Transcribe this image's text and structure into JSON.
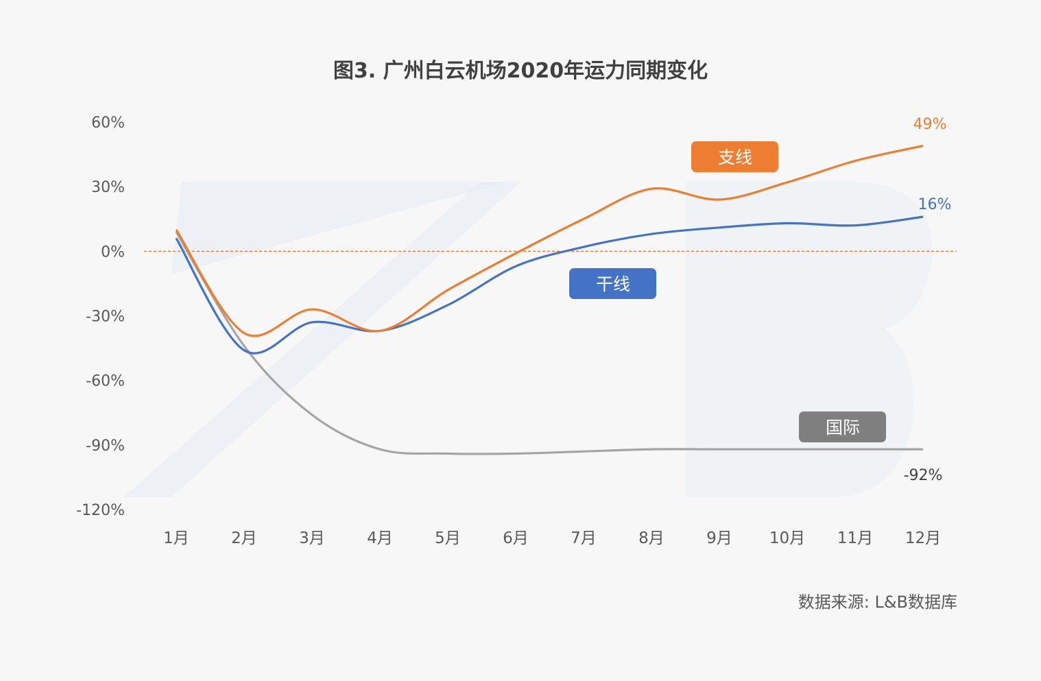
{
  "chart_data": {
    "type": "line",
    "title": "图3. 广州白云机场2020年运力同期变化",
    "source": "数据来源:  L&B数据库",
    "categories": [
      "1月",
      "2月",
      "3月",
      "4月",
      "5月",
      "6月",
      "7月",
      "8月",
      "9月",
      "10月",
      "11月",
      "12月"
    ],
    "ylim": [
      -120,
      60
    ],
    "yticks": [
      60,
      30,
      0,
      -30,
      -60,
      -90,
      -120
    ],
    "ytick_labels": [
      "60%",
      "30%",
      "0%",
      "-30%",
      "-60%",
      "-90%",
      "-120%"
    ],
    "reference_line": 0,
    "series": [
      {
        "name": "支线",
        "color": "#ed7d31",
        "values": [
          10,
          -38,
          -27,
          -37,
          -18,
          -1,
          15,
          29,
          24,
          32,
          42,
          49
        ],
        "end_label": "49%"
      },
      {
        "name": "干线",
        "color": "#4472c4",
        "values": [
          6,
          -46,
          -33,
          -37,
          -25,
          -7,
          2,
          8,
          11,
          13,
          12,
          16
        ],
        "end_label": "16%"
      },
      {
        "name": "国际",
        "color": "#a5a5a5",
        "values": [
          9,
          -44,
          -76,
          -92,
          -94,
          -94,
          -93,
          -92,
          -92,
          -92,
          -92,
          -92
        ],
        "end_label": "-92%"
      }
    ],
    "legend": [
      {
        "name": "支线",
        "bg": "#ed7d31",
        "placement": "upper-middle-right"
      },
      {
        "name": "干线",
        "bg": "#4472c4",
        "placement": "middle"
      },
      {
        "name": "国际",
        "bg": "#7f7f7f",
        "placement": "lower-right"
      }
    ]
  }
}
